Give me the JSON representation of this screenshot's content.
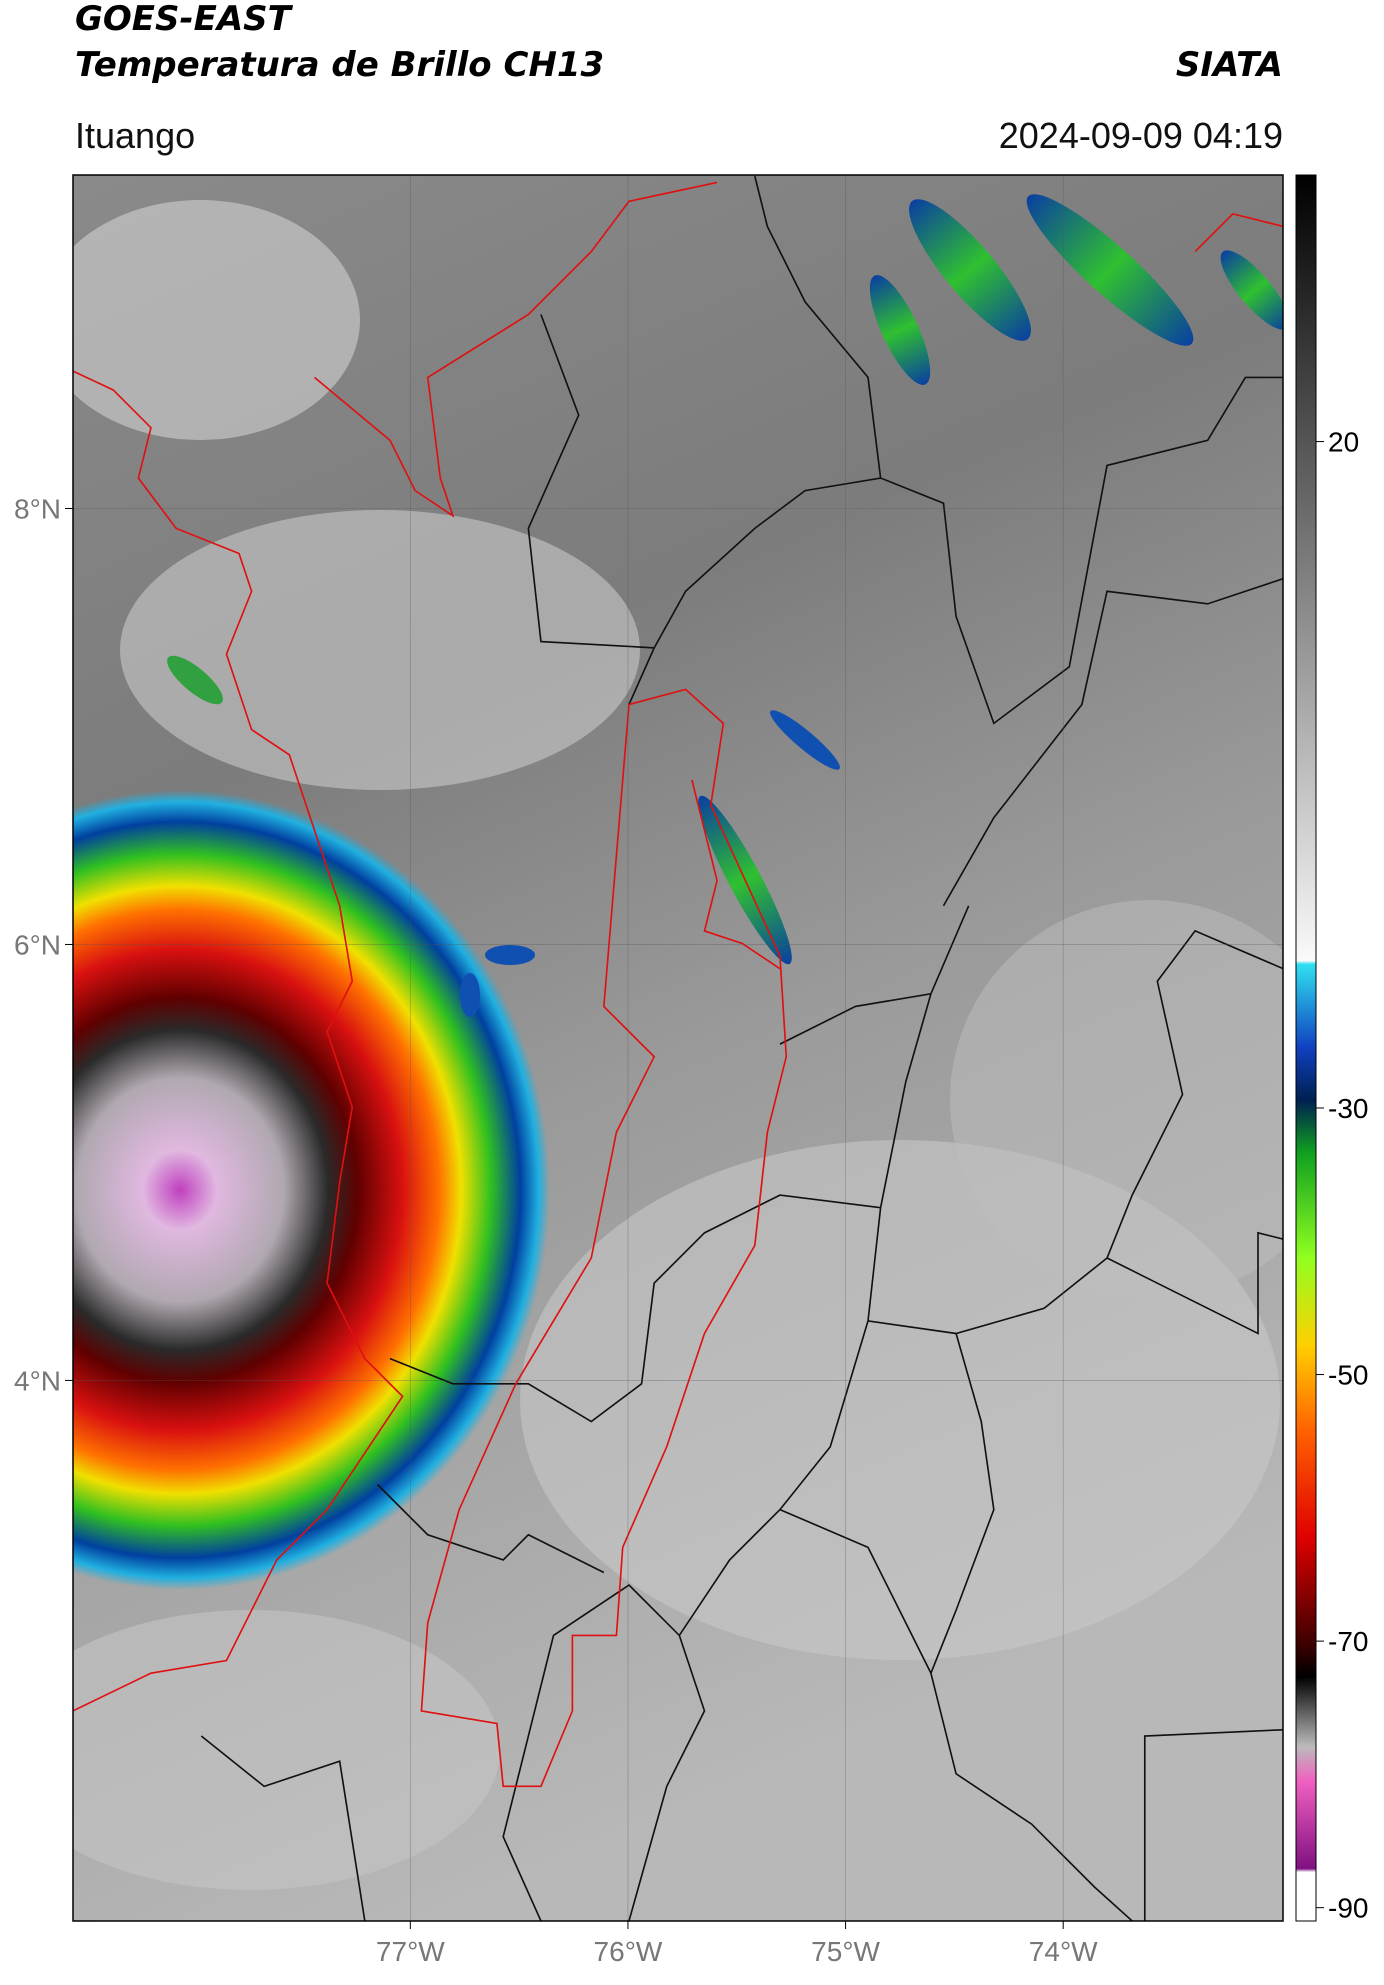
{
  "header": {
    "title": "GOES-EAST",
    "subtitle": "Temperatura de Brillo CH13",
    "agency": "SIATA",
    "region": "Ituango",
    "timestamp": "2024-09-09 04:19"
  },
  "map": {
    "lon_range": [
      -78.55,
      -72.99
    ],
    "lat_range": [
      1.52,
      9.53
    ],
    "lon_ticks": [
      {
        "value": -77,
        "label": "77°W"
      },
      {
        "value": -76,
        "label": "76°W"
      },
      {
        "value": -75,
        "label": "75°W"
      },
      {
        "value": -74,
        "label": "74°W"
      }
    ],
    "lat_ticks": [
      {
        "value": 8,
        "label": "8°N"
      },
      {
        "value": 6,
        "label": "6°N"
      },
      {
        "value": 4,
        "label": "4°N"
      }
    ]
  },
  "colorbar": {
    "range": [
      -91,
      40
    ],
    "ticks": [
      20,
      -30,
      -50,
      -70,
      -90
    ]
  }
}
